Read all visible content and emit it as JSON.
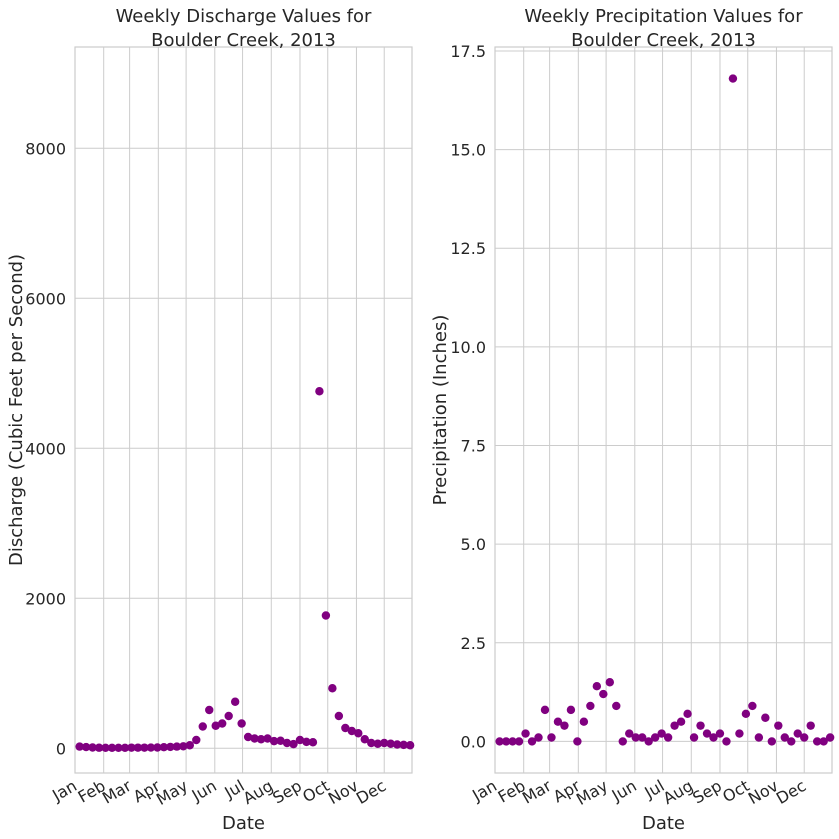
{
  "colors": {
    "marker": "#800080",
    "grid": "#cccccc",
    "text": "#262626"
  },
  "x_axis": {
    "months": [
      "Jan",
      "Feb",
      "Mar",
      "Apr",
      "May",
      "Jun",
      "Jul",
      "Aug",
      "Sep",
      "Oct",
      "Nov",
      "Dec"
    ],
    "month_start_days": [
      0,
      31,
      59,
      90,
      120,
      151,
      181,
      212,
      243,
      273,
      304,
      334
    ],
    "range_days": [
      0,
      364
    ]
  },
  "chart_data": [
    {
      "type": "scatter",
      "title": "Weekly Discharge Values for\nBoulder Creek, 2013",
      "xlabel": "Date",
      "ylabel": "Discharge (Cubic Feet per Second)",
      "ylim": [
        -330,
        9350
      ],
      "yticks": [
        0,
        2000,
        4000,
        6000,
        8000
      ],
      "ytick_labels": [
        "0",
        "2000",
        "4000",
        "6000",
        "8000"
      ],
      "grid": true,
      "x_dates": [
        "2013-01-06",
        "2013-01-13",
        "2013-01-20",
        "2013-01-27",
        "2013-02-03",
        "2013-02-10",
        "2013-02-17",
        "2013-02-24",
        "2013-03-03",
        "2013-03-10",
        "2013-03-17",
        "2013-03-24",
        "2013-03-31",
        "2013-04-07",
        "2013-04-14",
        "2013-04-21",
        "2013-04-28",
        "2013-05-05",
        "2013-05-12",
        "2013-05-19",
        "2013-05-26",
        "2013-06-02",
        "2013-06-09",
        "2013-06-16",
        "2013-06-23",
        "2013-06-30",
        "2013-07-07",
        "2013-07-14",
        "2013-07-21",
        "2013-07-28",
        "2013-08-04",
        "2013-08-11",
        "2013-08-18",
        "2013-08-25",
        "2013-09-01",
        "2013-09-08",
        "2013-09-15",
        "2013-09-22",
        "2013-09-29",
        "2013-10-06",
        "2013-10-13",
        "2013-10-20",
        "2013-10-27",
        "2013-11-03",
        "2013-11-10",
        "2013-11-17",
        "2013-11-24",
        "2013-12-01",
        "2013-12-08",
        "2013-12-15",
        "2013-12-22",
        "2013-12-29"
      ],
      "y": [
        22,
        16,
        10,
        7,
        6,
        6,
        6,
        6,
        8,
        8,
        8,
        9,
        10,
        14,
        18,
        22,
        26,
        40,
        110,
        290,
        510,
        300,
        330,
        430,
        620,
        330,
        150,
        130,
        120,
        130,
        95,
        100,
        70,
        55,
        110,
        85,
        80,
        4760,
        1770,
        800,
        430,
        270,
        230,
        200,
        120,
        70,
        60,
        70,
        60,
        50,
        45,
        40
      ]
    },
    {
      "type": "scatter",
      "title": "Weekly Precipitation Values for\nBoulder Creek, 2013",
      "xlabel": "Date",
      "ylabel": "Precipitation (Inches)",
      "ylim": [
        -0.8,
        17.6
      ],
      "yticks": [
        0,
        2.5,
        5,
        7.5,
        10,
        12.5,
        15,
        17.5
      ],
      "ytick_labels": [
        "0.0",
        "2.5",
        "5.0",
        "7.5",
        "10.0",
        "12.5",
        "15.0",
        "17.5"
      ],
      "grid": true,
      "x_dates": [
        "2013-01-06",
        "2013-01-13",
        "2013-01-20",
        "2013-01-27",
        "2013-02-03",
        "2013-02-10",
        "2013-02-17",
        "2013-02-24",
        "2013-03-03",
        "2013-03-10",
        "2013-03-17",
        "2013-03-24",
        "2013-03-31",
        "2013-04-07",
        "2013-04-14",
        "2013-04-21",
        "2013-04-28",
        "2013-05-05",
        "2013-05-12",
        "2013-05-19",
        "2013-05-26",
        "2013-06-02",
        "2013-06-09",
        "2013-06-16",
        "2013-06-23",
        "2013-06-30",
        "2013-07-07",
        "2013-07-14",
        "2013-07-21",
        "2013-07-28",
        "2013-08-04",
        "2013-08-11",
        "2013-08-18",
        "2013-08-25",
        "2013-09-01",
        "2013-09-08",
        "2013-09-15",
        "2013-09-22",
        "2013-09-29",
        "2013-10-06",
        "2013-10-13",
        "2013-10-20",
        "2013-10-27",
        "2013-11-03",
        "2013-11-10",
        "2013-11-17",
        "2013-11-24",
        "2013-12-01",
        "2013-12-08",
        "2013-12-15",
        "2013-12-22",
        "2013-12-29"
      ],
      "y": [
        0,
        0,
        0,
        0,
        0.2,
        0,
        0.1,
        0.8,
        0.1,
        0.5,
        0.4,
        0.8,
        0,
        0.5,
        0.9,
        1.4,
        1.2,
        1.5,
        0.9,
        0,
        0.2,
        0.1,
        0.1,
        0,
        0.1,
        0.2,
        0.1,
        0.4,
        0.5,
        0.7,
        0.1,
        0.4,
        0.2,
        0.1,
        0.2,
        0,
        16.8,
        0.2,
        0.7,
        0.9,
        0.1,
        0.6,
        0,
        0.4,
        0.1,
        0,
        0.2,
        0.1,
        0.4,
        0,
        0,
        0.1
      ]
    }
  ]
}
